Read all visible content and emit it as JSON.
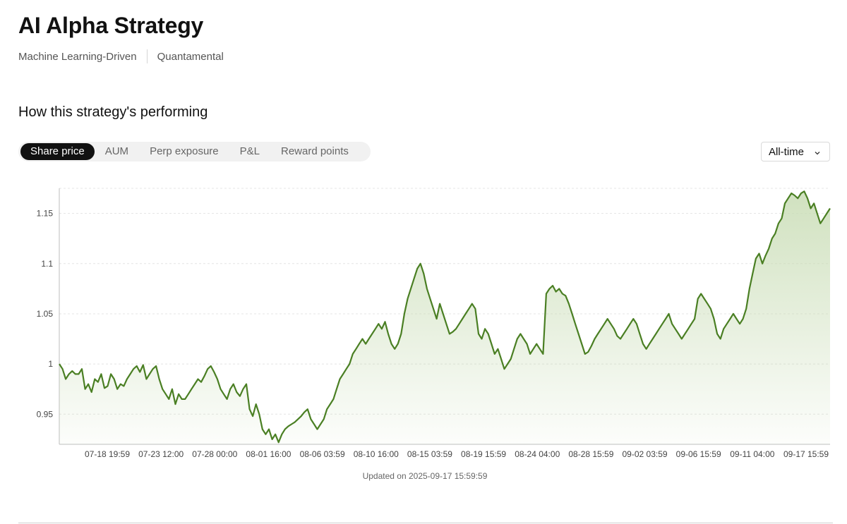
{
  "header": {
    "title": "AI Alpha Strategy",
    "tags": [
      "Machine Learning-Driven",
      "Quantamental"
    ]
  },
  "performance": {
    "heading": "How this strategy's performing",
    "tabs": [
      {
        "label": "Share price",
        "active": true
      },
      {
        "label": "AUM",
        "active": false
      },
      {
        "label": "Perp exposure",
        "active": false
      },
      {
        "label": "P&L",
        "active": false
      },
      {
        "label": "Reward points",
        "active": false
      }
    ],
    "range_select": {
      "value": "All-time",
      "icon": "chevron-down-icon"
    }
  },
  "footer": {
    "updated_text": "Updated on 2025-09-17 15:59:59"
  },
  "colors": {
    "line": "#4a7f23",
    "fill_top": "#c8dcb4",
    "active_tab_bg": "#111111"
  },
  "chart_data": {
    "type": "area",
    "title": "",
    "xlabel": "",
    "ylabel": "",
    "ylim": [
      0.92,
      1.175
    ],
    "yticks": [
      0.95,
      1,
      1.05,
      1.1,
      1.15
    ],
    "ytick_labels": [
      "0.95",
      "1",
      "1.05",
      "1.1",
      "1.15"
    ],
    "xtick_labels": [
      "07-18 19:59",
      "07-23 12:00",
      "07-28 00:00",
      "08-01 16:00",
      "08-06 03:59",
      "08-10 16:00",
      "08-15 03:59",
      "08-19 15:59",
      "08-24 04:00",
      "08-28 15:59",
      "09-02 03:59",
      "09-06 15:59",
      "09-11 04:00",
      "09-17 15:59"
    ],
    "grid": true,
    "series": [
      {
        "values": [
          1.0,
          0.995,
          0.985,
          0.99,
          0.993,
          0.99,
          0.99,
          0.995,
          0.975,
          0.98,
          0.972,
          0.985,
          0.982,
          0.99,
          0.976,
          0.978,
          0.99,
          0.985,
          0.975,
          0.98,
          0.978,
          0.985,
          0.99,
          0.995,
          0.998,
          0.992,
          0.999,
          0.985,
          0.99,
          0.995,
          0.998,
          0.985,
          0.975,
          0.97,
          0.965,
          0.975,
          0.96,
          0.97,
          0.965,
          0.965,
          0.97,
          0.975,
          0.98,
          0.985,
          0.982,
          0.988,
          0.995,
          0.998,
          0.992,
          0.985,
          0.975,
          0.97,
          0.965,
          0.975,
          0.98,
          0.972,
          0.968,
          0.975,
          0.98,
          0.955,
          0.948,
          0.96,
          0.95,
          0.935,
          0.93,
          0.935,
          0.925,
          0.93,
          0.922,
          0.93,
          0.935,
          0.938,
          0.94,
          0.942,
          0.945,
          0.948,
          0.952,
          0.955,
          0.945,
          0.94,
          0.935,
          0.94,
          0.945,
          0.955,
          0.96,
          0.965,
          0.975,
          0.985,
          0.99,
          0.995,
          1.0,
          1.01,
          1.015,
          1.02,
          1.025,
          1.02,
          1.025,
          1.03,
          1.035,
          1.04,
          1.035,
          1.042,
          1.03,
          1.02,
          1.015,
          1.02,
          1.03,
          1.05,
          1.065,
          1.075,
          1.085,
          1.095,
          1.1,
          1.09,
          1.075,
          1.065,
          1.055,
          1.045,
          1.06,
          1.05,
          1.04,
          1.03,
          1.032,
          1.035,
          1.04,
          1.045,
          1.05,
          1.055,
          1.06,
          1.055,
          1.03,
          1.025,
          1.035,
          1.03,
          1.02,
          1.01,
          1.015,
          1.005,
          0.995,
          1.0,
          1.005,
          1.015,
          1.025,
          1.03,
          1.025,
          1.02,
          1.01,
          1.015,
          1.02,
          1.015,
          1.01,
          1.07,
          1.075,
          1.078,
          1.072,
          1.075,
          1.07,
          1.068,
          1.06,
          1.05,
          1.04,
          1.03,
          1.02,
          1.01,
          1.012,
          1.018,
          1.025,
          1.03,
          1.035,
          1.04,
          1.045,
          1.04,
          1.035,
          1.028,
          1.025,
          1.03,
          1.035,
          1.04,
          1.045,
          1.04,
          1.03,
          1.02,
          1.015,
          1.02,
          1.025,
          1.03,
          1.035,
          1.04,
          1.045,
          1.05,
          1.04,
          1.035,
          1.03,
          1.025,
          1.03,
          1.035,
          1.04,
          1.045,
          1.065,
          1.07,
          1.065,
          1.06,
          1.055,
          1.045,
          1.03,
          1.025,
          1.035,
          1.04,
          1.045,
          1.05,
          1.045,
          1.04,
          1.045,
          1.055,
          1.075,
          1.09,
          1.105,
          1.11,
          1.1,
          1.108,
          1.115,
          1.125,
          1.13,
          1.14,
          1.145,
          1.16,
          1.165,
          1.17,
          1.168,
          1.165,
          1.17,
          1.172,
          1.165,
          1.155,
          1.16,
          1.15,
          1.14,
          1.145,
          1.15,
          1.155
        ]
      }
    ]
  }
}
